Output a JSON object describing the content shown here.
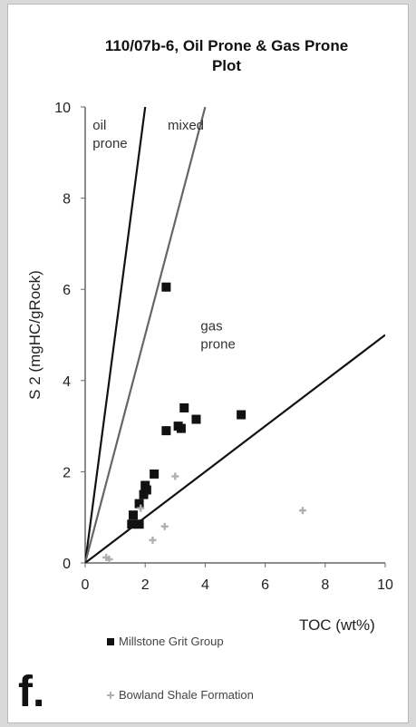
{
  "chart_data": {
    "type": "scatter",
    "title": "110/07b-6, Oil Prone & Gas Prone Plot",
    "title_lines": [
      "110/07b-6, Oil Prone & Gas Prone",
      "Plot"
    ],
    "xlabel": "TOC (wt%)",
    "ylabel": "S 2 (mgHC/gRock)",
    "xlim": [
      0,
      10
    ],
    "ylim": [
      0,
      10
    ],
    "xticks": [
      0,
      2,
      4,
      6,
      8,
      10
    ],
    "yticks": [
      0,
      2,
      4,
      6,
      8,
      10
    ],
    "grid": false,
    "legend_position": "bottom",
    "boundary_lines": [
      {
        "slope": 5,
        "color": "#111111"
      },
      {
        "slope": 2.5,
        "color": "#666666"
      },
      {
        "slope": 0.5,
        "color": "#111111"
      }
    ],
    "region_labels": [
      {
        "lines": [
          "oil",
          "prone"
        ],
        "x": 0.25,
        "y": 9.5
      },
      {
        "lines": [
          "mixed"
        ],
        "x": 2.75,
        "y": 9.5
      },
      {
        "lines": [
          "gas",
          "prone"
        ],
        "x": 3.85,
        "y": 5.1
      }
    ],
    "series": [
      {
        "name": "Millstone Grit Group",
        "marker": "square",
        "color": "#111111",
        "points": [
          [
            2.7,
            6.05
          ],
          [
            3.3,
            3.4
          ],
          [
            3.1,
            3.0
          ],
          [
            3.2,
            2.95
          ],
          [
            2.7,
            2.9
          ],
          [
            3.7,
            3.15
          ],
          [
            5.2,
            3.25
          ],
          [
            2.3,
            1.95
          ],
          [
            2.0,
            1.7
          ],
          [
            2.05,
            1.6
          ],
          [
            1.95,
            1.5
          ],
          [
            1.8,
            1.3
          ],
          [
            1.6,
            1.05
          ],
          [
            1.55,
            0.85
          ],
          [
            1.8,
            0.85
          ]
        ]
      },
      {
        "name": "Bowland Shale Formation",
        "marker": "cross",
        "color": "#b0b0b0",
        "points": [
          [
            3.0,
            1.9
          ],
          [
            1.85,
            1.2
          ],
          [
            2.65,
            0.8
          ],
          [
            2.25,
            0.5
          ],
          [
            7.25,
            1.15
          ],
          [
            0.7,
            0.12
          ],
          [
            0.8,
            0.08
          ]
        ]
      }
    ]
  },
  "panel_label": "f."
}
